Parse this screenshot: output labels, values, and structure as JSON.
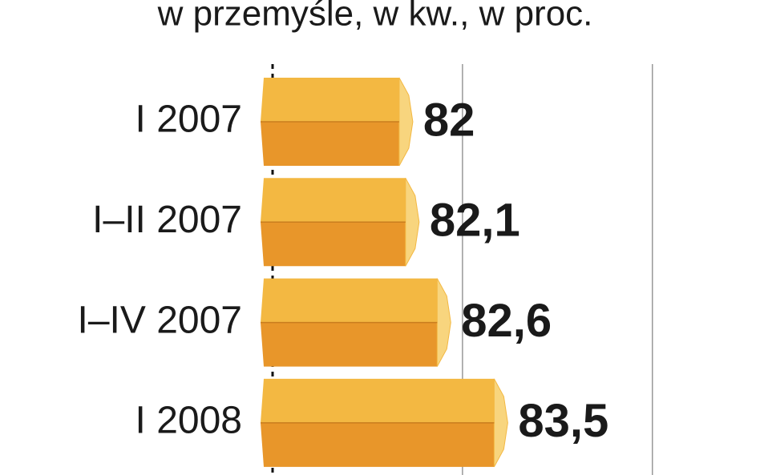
{
  "chart_data": {
    "type": "bar",
    "title": "w przemyśle, w kw., w proc.",
    "categories": [
      "I 2007",
      "I–II 2007",
      "I–IV 2007",
      "I 2008"
    ],
    "values": [
      82,
      82.1,
      82.6,
      83.5
    ],
    "value_labels": [
      "82",
      "82,1",
      "82,6",
      "83,5"
    ],
    "colors": {
      "top": "#f3b842",
      "bottom": "#e8962a",
      "cap": "#f8d57e"
    },
    "xlim": [
      80,
      87.7
    ],
    "xticks": [
      80,
      83,
      86
    ],
    "grid": true
  }
}
